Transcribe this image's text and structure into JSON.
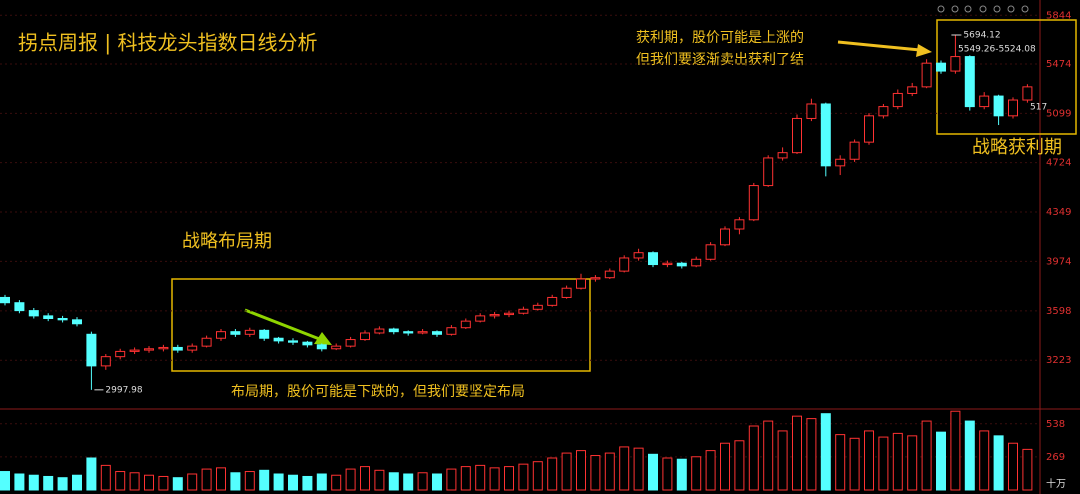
{
  "chart_data": {
    "type": "candlestick",
    "title": "拐点周报 | 科技龙头指数日线分析",
    "annotations": [
      "战略布局期",
      "布局期，股价可能是下跌的，但我们要坚定布局",
      "获利期，股价可能是上涨的",
      "但我们要逐渐卖出获利了结",
      "战略获利期"
    ],
    "marker_labels": [
      "5549.26-5524.08",
      "517"
    ],
    "volume_unit": "十万",
    "up_color": "#ff3232",
    "down_color": "#54ffff",
    "ylim": [
      2860,
      5960
    ],
    "yticks": [
      3223,
      3598,
      3974,
      4349,
      4724,
      5099,
      5474,
      5844
    ],
    "volume_ylim": [
      0,
      650
    ],
    "volume_ticks": [
      269,
      538
    ],
    "candles": [
      [
        3700,
        3720,
        3640,
        3660
      ],
      [
        3660,
        3680,
        3580,
        3600
      ],
      [
        3600,
        3620,
        3540,
        3560
      ],
      [
        3560,
        3580,
        3520,
        3540
      ],
      [
        3540,
        3560,
        3510,
        3530
      ],
      [
        3530,
        3550,
        3480,
        3500
      ],
      [
        3420,
        3440,
        2997.98,
        3180
      ],
      [
        3180,
        3270,
        3150,
        3250
      ],
      [
        3250,
        3310,
        3230,
        3290
      ],
      [
        3290,
        3320,
        3270,
        3300
      ],
      [
        3300,
        3330,
        3280,
        3310
      ],
      [
        3310,
        3340,
        3290,
        3320
      ],
      [
        3320,
        3340,
        3280,
        3300
      ],
      [
        3300,
        3350,
        3280,
        3330
      ],
      [
        3330,
        3410,
        3320,
        3390
      ],
      [
        3390,
        3460,
        3370,
        3440
      ],
      [
        3440,
        3460,
        3400,
        3420
      ],
      [
        3420,
        3470,
        3400,
        3450
      ],
      [
        3450,
        3460,
        3370,
        3390
      ],
      [
        3390,
        3400,
        3350,
        3370
      ],
      [
        3370,
        3390,
        3340,
        3360
      ],
      [
        3360,
        3370,
        3320,
        3340
      ],
      [
        3340,
        3350,
        3290,
        3310
      ],
      [
        3310,
        3350,
        3300,
        3330
      ],
      [
        3330,
        3400,
        3320,
        3380
      ],
      [
        3380,
        3450,
        3370,
        3430
      ],
      [
        3430,
        3480,
        3420,
        3460
      ],
      [
        3460,
        3470,
        3420,
        3440
      ],
      [
        3440,
        3450,
        3410,
        3430
      ],
      [
        3430,
        3460,
        3420,
        3440
      ],
      [
        3440,
        3450,
        3400,
        3420
      ],
      [
        3420,
        3490,
        3410,
        3470
      ],
      [
        3470,
        3540,
        3460,
        3520
      ],
      [
        3520,
        3580,
        3510,
        3560
      ],
      [
        3560,
        3590,
        3540,
        3570
      ],
      [
        3570,
        3600,
        3550,
        3580
      ],
      [
        3580,
        3630,
        3570,
        3610
      ],
      [
        3610,
        3660,
        3600,
        3640
      ],
      [
        3640,
        3720,
        3630,
        3700
      ],
      [
        3700,
        3790,
        3690,
        3770
      ],
      [
        3770,
        3880,
        3760,
        3840
      ],
      [
        3840,
        3870,
        3820,
        3850
      ],
      [
        3850,
        3920,
        3840,
        3900
      ],
      [
        3900,
        4020,
        3890,
        4000
      ],
      [
        4000,
        4070,
        3980,
        4040
      ],
      [
        4040,
        4050,
        3930,
        3950
      ],
      [
        3950,
        3980,
        3930,
        3960
      ],
      [
        3960,
        3970,
        3920,
        3940
      ],
      [
        3940,
        4010,
        3930,
        3990
      ],
      [
        3990,
        4120,
        3980,
        4100
      ],
      [
        4100,
        4240,
        4090,
        4220
      ],
      [
        4220,
        4310,
        4180,
        4290
      ],
      [
        4290,
        4570,
        4280,
        4550
      ],
      [
        4550,
        4780,
        4540,
        4760
      ],
      [
        4760,
        4840,
        4740,
        4800
      ],
      [
        4800,
        5090,
        4790,
        5060
      ],
      [
        5060,
        5210,
        5040,
        5170
      ],
      [
        5170,
        5180,
        4620,
        4700
      ],
      [
        4700,
        4780,
        4630,
        4750
      ],
      [
        4750,
        4900,
        4730,
        4880
      ],
      [
        4880,
        5100,
        4860,
        5080
      ],
      [
        5080,
        5170,
        5060,
        5150
      ],
      [
        5150,
        5280,
        5130,
        5250
      ],
      [
        5250,
        5330,
        5230,
        5300
      ],
      [
        5300,
        5510,
        5290,
        5480
      ],
      [
        5480,
        5500,
        5400,
        5420
      ],
      [
        5420,
        5694.12,
        5400,
        5530
      ],
      [
        5530,
        5540,
        5120,
        5150
      ],
      [
        5150,
        5260,
        5130,
        5230
      ],
      [
        5230,
        5240,
        5010,
        5080
      ],
      [
        5080,
        5220,
        5060,
        5200
      ],
      [
        5200,
        5320,
        5180,
        5300
      ]
    ],
    "volumes": [
      150,
      130,
      120,
      110,
      100,
      120,
      260,
      200,
      150,
      140,
      120,
      110,
      100,
      130,
      170,
      180,
      140,
      150,
      160,
      130,
      120,
      110,
      130,
      120,
      170,
      190,
      160,
      140,
      130,
      140,
      130,
      170,
      190,
      200,
      180,
      190,
      210,
      230,
      260,
      300,
      320,
      280,
      300,
      350,
      340,
      290,
      260,
      250,
      270,
      320,
      380,
      400,
      520,
      560,
      480,
      600,
      580,
      620,
      450,
      420,
      480,
      430,
      460,
      440,
      560,
      470,
      640,
      560,
      480,
      440,
      380,
      330
    ]
  }
}
